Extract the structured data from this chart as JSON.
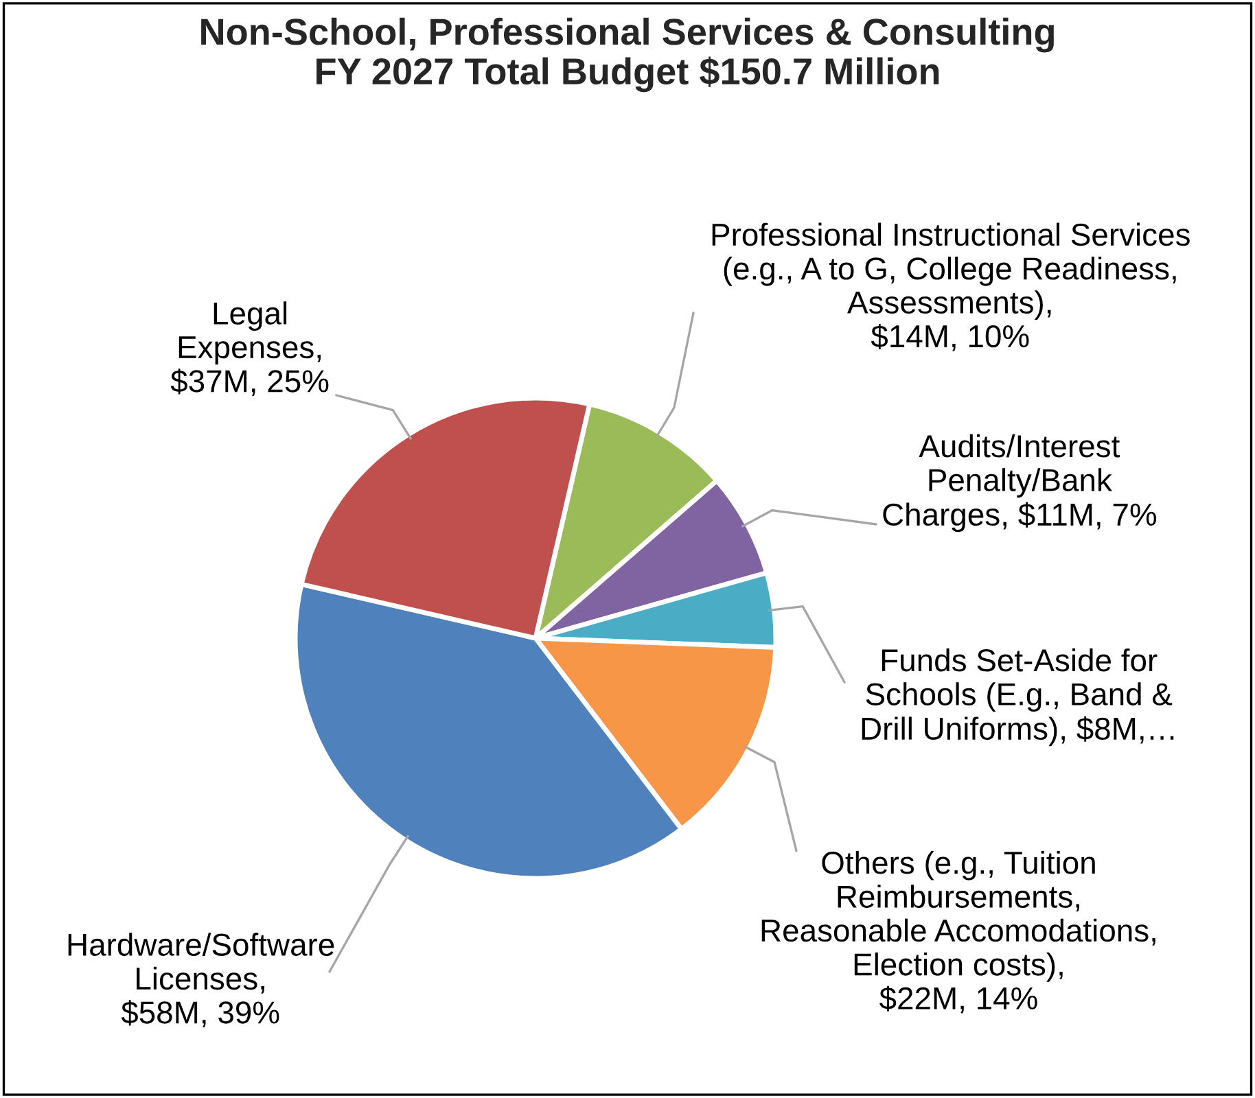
{
  "chart_data": {
    "type": "pie",
    "title": "Non-School, Professional Services & Consulting\nFY 2027 Total Budget $150.7 Million",
    "categories": [
      "Professional Instructional Services\n(e.g., A to G, College Readiness,\nAssessments),\n$14M, 10%",
      "Audits/Interest\nPenalty/Bank\nCharges, $11M, 7%",
      "Funds Set-Aside for\nSchools (E.g., Band &\nDrill Uniforms), $8M,…",
      "Others (e.g., Tuition\nReimbursements,\nReasonable Accomodations,\nElection costs),\n$22M, 14%",
      "Hardware/Software\nLicenses,\n$58M, 39%",
      "Legal\nExpenses,\n$37M, 25%"
    ],
    "values": [
      10,
      7,
      5,
      14,
      39,
      25
    ],
    "colors": [
      "#9bbb59",
      "#8064a2",
      "#4bacc6",
      "#f79646",
      "#4f81bd",
      "#c0504d"
    ],
    "legend": false
  }
}
